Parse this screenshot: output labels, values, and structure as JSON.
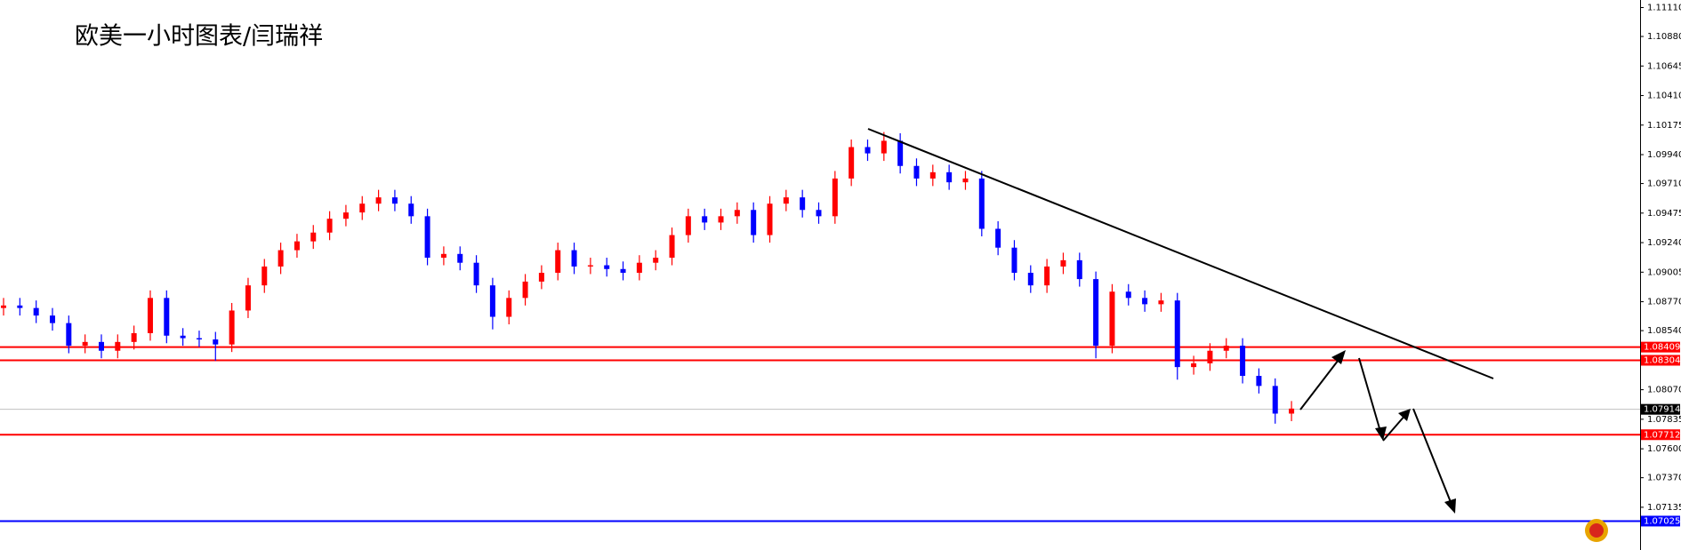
{
  "chart_data": {
    "type": "candlestick",
    "title": "欧美一小时图表/闫瑞祥",
    "up_color": "#ff0000",
    "down_color": "#0000ff",
    "ylim": [
      1.06795,
      1.1117
    ],
    "yticks": [
      {
        "value": 1.1111,
        "label": "1.11110"
      },
      {
        "value": 1.1088,
        "label": "1.10880"
      },
      1.10645,
      {
        "value": 1.1041,
        "label": "1.10410"
      },
      1.10175,
      {
        "value": 1.0994,
        "label": "1.09940"
      },
      {
        "value": 1.0971,
        "label": "1.09710"
      },
      1.09475,
      {
        "value": 1.0924,
        "label": "1.09240"
      },
      1.09005,
      {
        "value": 1.0877,
        "label": "1.08770"
      },
      {
        "value": 1.0854,
        "label": "1.08540"
      },
      {
        "value": 1.0807,
        "label": "1.08070"
      },
      1.07835,
      {
        "value": 1.076,
        "label": "1.07600"
      },
      {
        "value": 1.0737,
        "label": "1.07370"
      },
      1.07135
    ],
    "levels": [
      {
        "value": 1.08409,
        "color": "#ff0000"
      },
      {
        "value": 1.08304,
        "color": "#ff0000"
      },
      {
        "value": 1.07914,
        "color": "#000000"
      },
      {
        "value": 1.07712,
        "color": "#ff0000"
      },
      {
        "value": 1.07025,
        "color": "#0000ff"
      }
    ],
    "open": [
      1.0872,
      1.0874,
      1.0872,
      1.0866,
      1.086,
      1.0842,
      1.0845,
      1.0838,
      1.0845,
      1.0852,
      1.088,
      1.085,
      1.0848,
      1.0847,
      1.0843,
      1.087,
      1.089,
      1.0905,
      1.0918,
      1.0925,
      1.0932,
      1.0943,
      1.0948,
      1.0955,
      1.096,
      1.0955,
      1.0945,
      1.0912,
      1.0915,
      1.0908,
      1.089,
      1.0865,
      1.088,
      1.0893,
      1.09,
      1.0918,
      1.0905,
      1.0906,
      1.0903,
      1.09,
      1.0908,
      1.0912,
      1.093,
      1.0945,
      1.094,
      1.0945,
      1.095,
      1.093,
      1.0955,
      1.096,
      1.095,
      1.0945,
      1.0975,
      1.1,
      1.0995,
      1.1005,
      1.0985,
      1.0975,
      1.098,
      1.0972,
      1.0975,
      1.0935,
      1.092,
      1.09,
      1.089,
      1.0905,
      1.091,
      1.0895,
      1.0842,
      1.0885,
      1.088,
      1.0875,
      1.0878,
      1.0825,
      1.0828,
      1.0838,
      1.0842,
      1.0818,
      1.081,
      1.0788
    ],
    "high": [
      1.088,
      1.088,
      1.0878,
      1.0872,
      1.0866,
      1.0851,
      1.0851,
      1.0851,
      1.0858,
      1.0886,
      1.0886,
      1.0856,
      1.0854,
      1.0853,
      1.0876,
      1.0896,
      1.0911,
      1.0924,
      1.0931,
      1.0938,
      1.0949,
      1.0954,
      1.0961,
      1.0966,
      1.0966,
      1.0961,
      1.0951,
      1.0921,
      1.0921,
      1.0914,
      1.0896,
      1.0886,
      1.0899,
      1.0906,
      1.0924,
      1.0924,
      1.0912,
      1.0912,
      1.0909,
      1.0914,
      1.0918,
      1.0936,
      1.0951,
      1.0951,
      1.0951,
      1.0956,
      1.0956,
      1.0961,
      1.0966,
      1.0966,
      1.0956,
      1.0981,
      1.1006,
      1.1006,
      1.1012,
      1.1011,
      1.0991,
      1.0986,
      1.0986,
      1.0981,
      1.0981,
      1.0941,
      1.0926,
      1.0906,
      1.0911,
      1.0916,
      1.0916,
      1.0901,
      1.0891,
      1.0891,
      1.0886,
      1.0884,
      1.0884,
      1.0834,
      1.0844,
      1.0848,
      1.0848,
      1.0824,
      1.0816,
      1.0798
    ],
    "low": [
      1.0866,
      1.0866,
      1.086,
      1.0854,
      1.0836,
      1.0836,
      1.0832,
      1.0832,
      1.0839,
      1.0846,
      1.0844,
      1.0842,
      1.0841,
      1.083,
      1.0837,
      1.0864,
      1.0884,
      1.0899,
      1.0912,
      1.0919,
      1.0926,
      1.0937,
      1.0942,
      1.0949,
      1.0949,
      1.0939,
      1.0906,
      1.0906,
      1.0902,
      1.0884,
      1.0855,
      1.0859,
      1.0874,
      1.0887,
      1.0894,
      1.0899,
      1.0899,
      1.0897,
      1.0894,
      1.0894,
      1.0902,
      1.0906,
      1.0924,
      1.0934,
      1.0934,
      1.0939,
      1.0924,
      1.0924,
      1.0949,
      1.0944,
      1.0939,
      1.0939,
      1.0969,
      1.0989,
      1.0989,
      1.0979,
      1.0969,
      1.0969,
      1.0966,
      1.0966,
      1.0929,
      1.0914,
      1.0894,
      1.0884,
      1.0884,
      1.0899,
      1.0889,
      1.0832,
      1.0836,
      1.0874,
      1.0869,
      1.0869,
      1.0815,
      1.0819,
      1.0822,
      1.0832,
      1.0812,
      1.0804,
      1.078,
      1.0782
    ],
    "close": [
      1.0874,
      1.0872,
      1.0866,
      1.086,
      1.0842,
      1.0845,
      1.0838,
      1.0845,
      1.0852,
      1.088,
      1.085,
      1.0848,
      1.0847,
      1.0843,
      1.087,
      1.089,
      1.0905,
      1.0918,
      1.0925,
      1.0932,
      1.0943,
      1.0948,
      1.0955,
      1.096,
      1.0955,
      1.0945,
      1.0912,
      1.0915,
      1.0908,
      1.089,
      1.0865,
      1.088,
      1.0893,
      1.09,
      1.0918,
      1.0905,
      1.0906,
      1.0903,
      1.09,
      1.0908,
      1.0912,
      1.093,
      1.0945,
      1.094,
      1.0945,
      1.095,
      1.093,
      1.0955,
      1.096,
      1.095,
      1.0945,
      1.0975,
      1.1,
      1.0995,
      1.1005,
      1.0985,
      1.0975,
      1.098,
      1.0972,
      1.0975,
      1.0935,
      1.092,
      1.09,
      1.089,
      1.0905,
      1.091,
      1.0895,
      1.0842,
      1.0885,
      1.088,
      1.0875,
      1.0878,
      1.0825,
      1.0828,
      1.0838,
      1.0842,
      1.0818,
      1.081,
      1.0788,
      1.0792
    ]
  }
}
